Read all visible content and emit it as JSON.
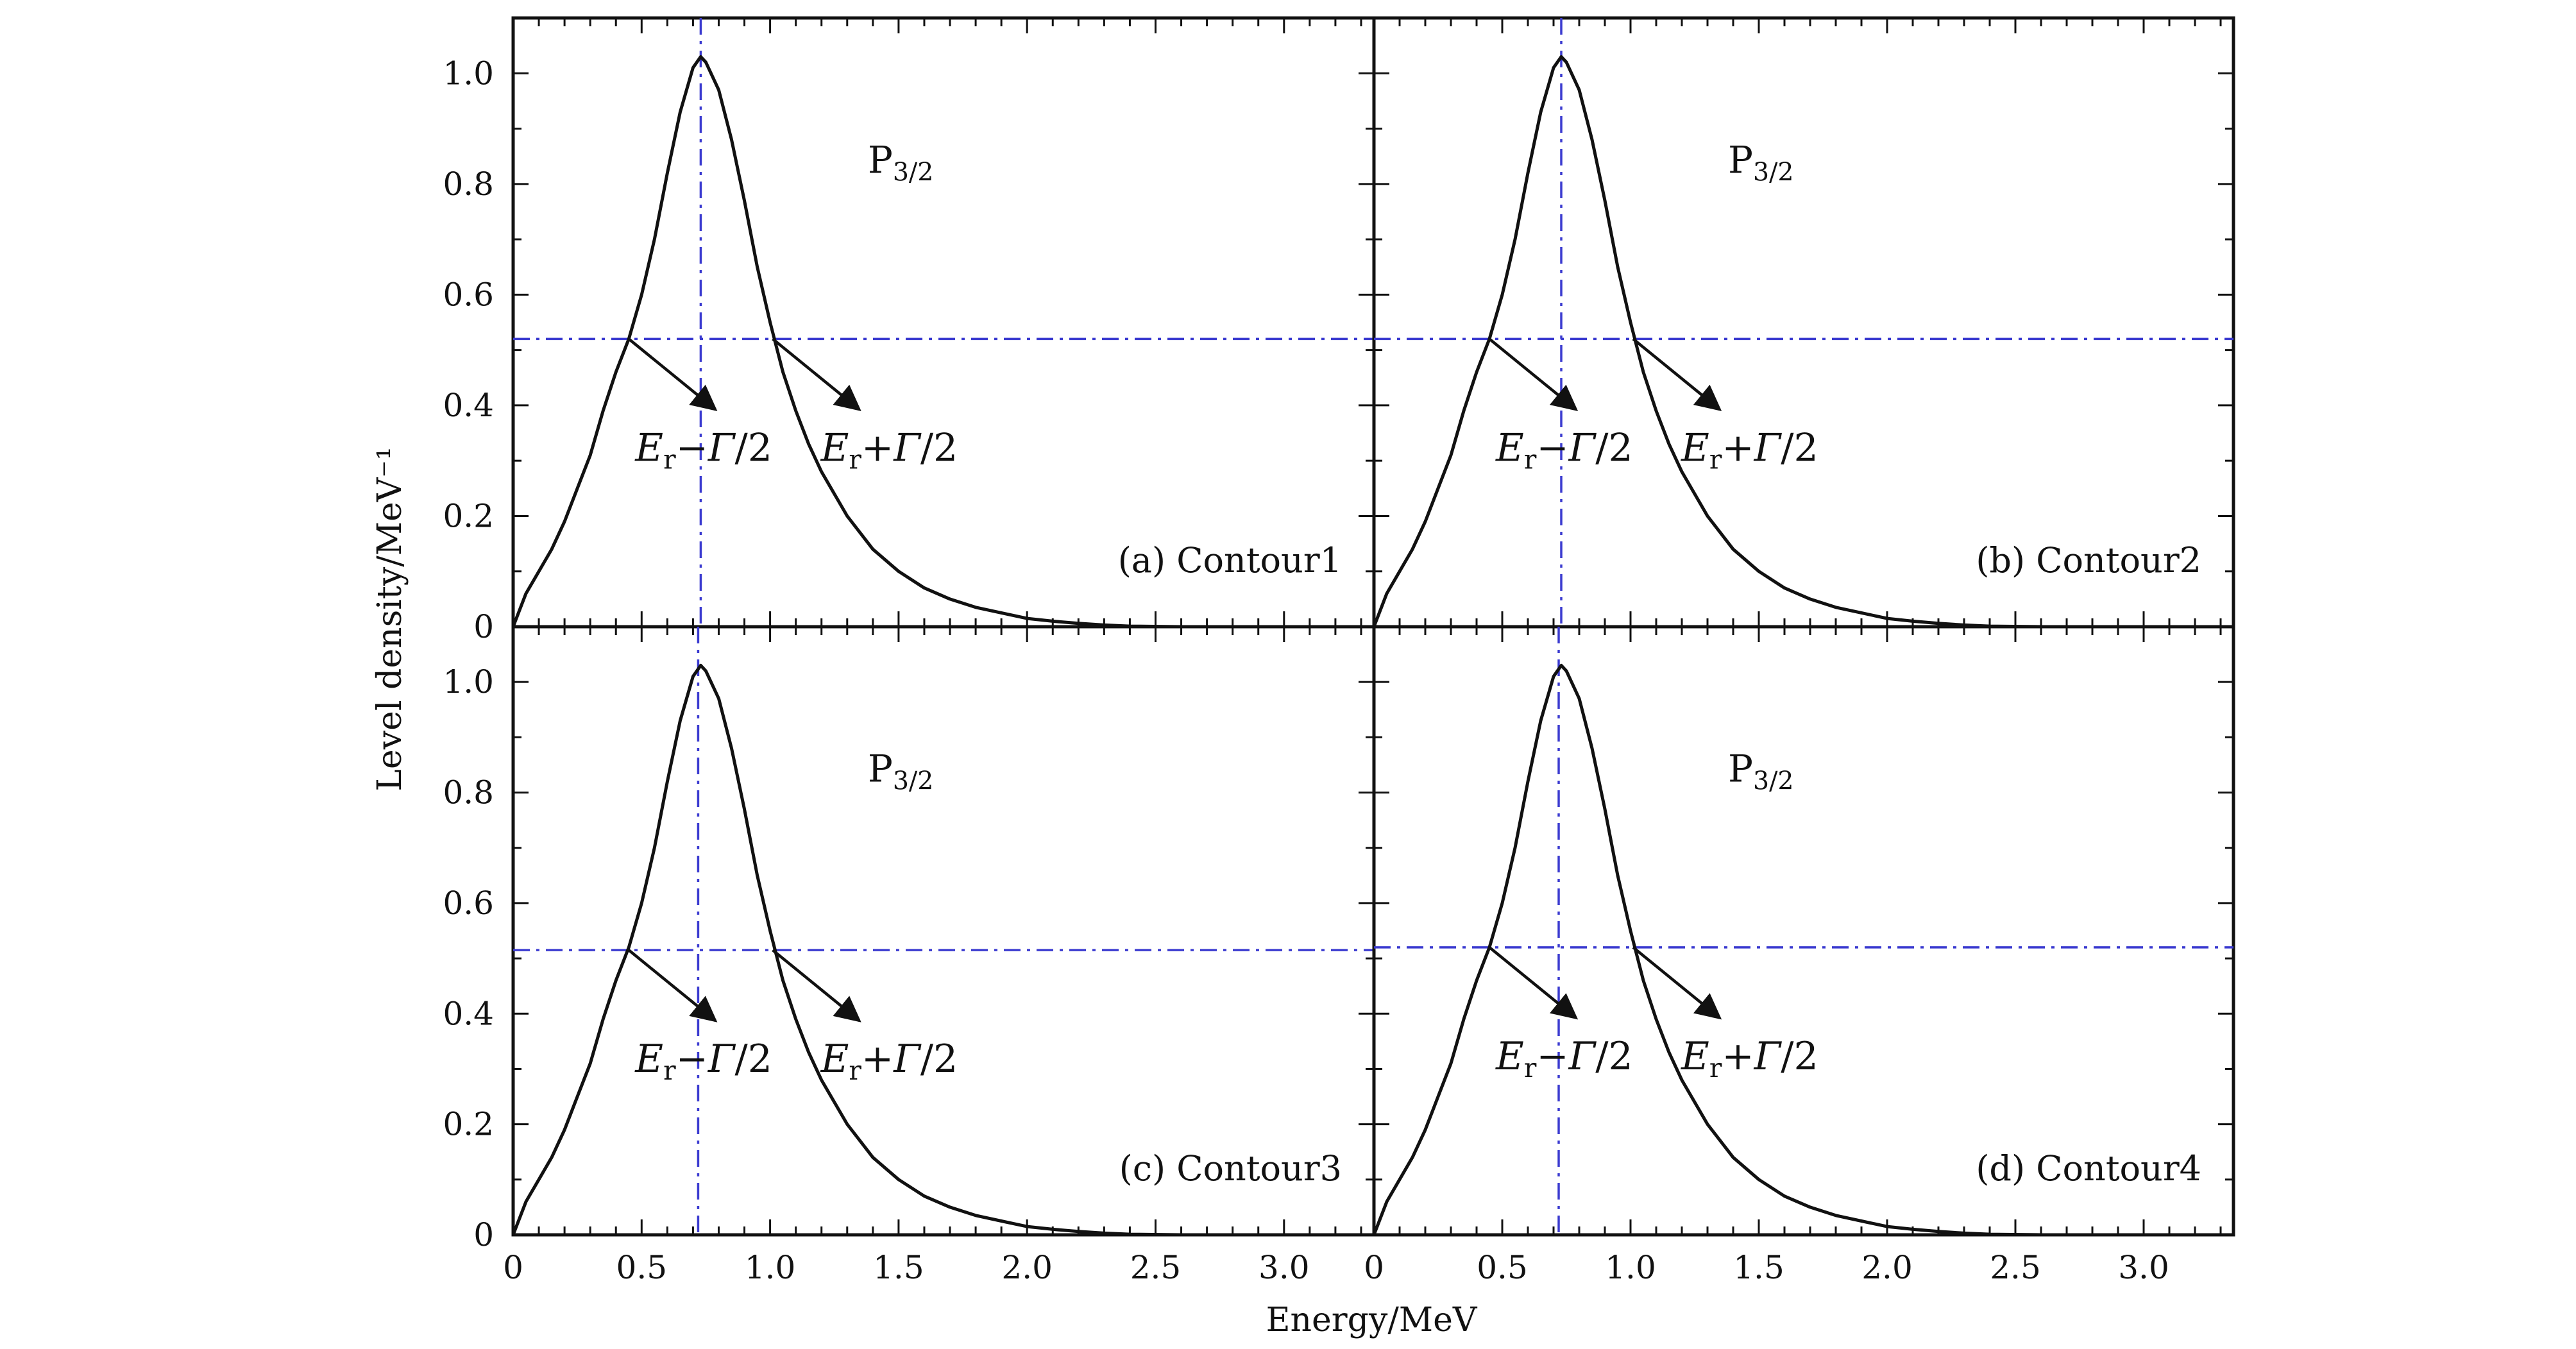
{
  "chart_data": {
    "type": "line",
    "xlabel": "Energy/MeV",
    "ylabel": "Level density/MeV⁻¹",
    "xlim": [
      0,
      3.35
    ],
    "ylim": [
      0,
      1.1
    ],
    "x_ticks": [
      0,
      0.5,
      1.0,
      1.5,
      2.0,
      2.5,
      3.0
    ],
    "x_tick_labels": [
      "0",
      "0.5",
      "1.0",
      "1.5",
      "2.0",
      "2.5",
      "3.0"
    ],
    "y_ticks": [
      0,
      0.2,
      0.4,
      0.6,
      0.8,
      1.0
    ],
    "y_tick_labels": [
      "0",
      "0.2",
      "0.4",
      "0.6",
      "0.8",
      "1.0"
    ],
    "line_color": "#111111",
    "reference_line_color": "#3b3bd0",
    "panels": [
      {
        "id": "a",
        "label": "(a) Contour1",
        "state_label": {
          "main": "P",
          "sub": "3/2"
        },
        "peak_energy": 0.73,
        "half_max": 0.52,
        "annotation_left": {
          "E": "E",
          "sub": "r",
          "rest": "−Γ/2"
        },
        "annotation_right": {
          "E": "E",
          "sub": "r",
          "rest": "+Γ/2"
        },
        "series": [
          {
            "x": [
              0,
              0.05,
              0.1,
              0.15,
              0.2,
              0.25,
              0.3,
              0.35,
              0.4,
              0.45,
              0.5,
              0.55,
              0.6,
              0.65,
              0.7,
              0.73,
              0.75,
              0.8,
              0.85,
              0.9,
              0.95,
              1.0,
              1.05,
              1.1,
              1.15,
              1.2,
              1.3,
              1.4,
              1.5,
              1.6,
              1.7,
              1.8,
              1.9,
              2.0,
              2.1,
              2.2,
              2.3,
              2.4,
              2.6,
              2.8,
              3.0,
              3.35
            ],
            "y": [
              0,
              0.06,
              0.1,
              0.14,
              0.19,
              0.25,
              0.31,
              0.39,
              0.46,
              0.52,
              0.6,
              0.7,
              0.82,
              0.93,
              1.01,
              1.03,
              1.02,
              0.97,
              0.88,
              0.77,
              0.65,
              0.55,
              0.46,
              0.39,
              0.33,
              0.28,
              0.2,
              0.14,
              0.1,
              0.07,
              0.05,
              0.035,
              0.025,
              0.015,
              0.01,
              0.006,
              0.003,
              0.001,
              0,
              0,
              0,
              0
            ]
          }
        ]
      },
      {
        "id": "b",
        "label": "(b) Contour2",
        "state_label": {
          "main": "P",
          "sub": "3/2"
        },
        "peak_energy": 0.73,
        "half_max": 0.52,
        "annotation_left": {
          "E": "E",
          "sub": "r",
          "rest": "−Γ/2"
        },
        "annotation_right": {
          "E": "E",
          "sub": "r",
          "rest": "+Γ/2"
        },
        "series": [
          {
            "x": [
              0,
              0.05,
              0.1,
              0.15,
              0.2,
              0.25,
              0.3,
              0.35,
              0.4,
              0.45,
              0.5,
              0.55,
              0.6,
              0.65,
              0.7,
              0.73,
              0.75,
              0.8,
              0.85,
              0.9,
              0.95,
              1.0,
              1.05,
              1.1,
              1.15,
              1.2,
              1.3,
              1.4,
              1.5,
              1.6,
              1.7,
              1.8,
              1.9,
              2.0,
              2.1,
              2.2,
              2.3,
              2.4,
              2.6,
              2.8,
              3.0,
              3.35
            ],
            "y": [
              0,
              0.06,
              0.1,
              0.14,
              0.19,
              0.25,
              0.31,
              0.39,
              0.46,
              0.52,
              0.6,
              0.7,
              0.82,
              0.93,
              1.01,
              1.03,
              1.02,
              0.97,
              0.88,
              0.77,
              0.65,
              0.55,
              0.46,
              0.39,
              0.33,
              0.28,
              0.2,
              0.14,
              0.1,
              0.07,
              0.05,
              0.035,
              0.025,
              0.015,
              0.01,
              0.006,
              0.003,
              0.001,
              0,
              0,
              0,
              0
            ]
          }
        ]
      },
      {
        "id": "c",
        "label": "(c) Contour3",
        "state_label": {
          "main": "P",
          "sub": "3/2"
        },
        "peak_energy": 0.72,
        "half_max": 0.515,
        "annotation_left": {
          "E": "E",
          "sub": "r",
          "rest": "−Γ/2"
        },
        "annotation_right": {
          "E": "E",
          "sub": "r",
          "rest": "+Γ/2"
        },
        "series": [
          {
            "x": [
              0,
              0.05,
              0.1,
              0.15,
              0.2,
              0.25,
              0.3,
              0.35,
              0.4,
              0.45,
              0.5,
              0.55,
              0.6,
              0.65,
              0.7,
              0.73,
              0.75,
              0.8,
              0.85,
              0.9,
              0.95,
              1.0,
              1.05,
              1.1,
              1.15,
              1.2,
              1.3,
              1.4,
              1.5,
              1.6,
              1.7,
              1.8,
              1.9,
              2.0,
              2.1,
              2.2,
              2.3,
              2.4,
              2.6,
              2.8,
              3.0,
              3.35
            ],
            "y": [
              0,
              0.06,
              0.1,
              0.14,
              0.19,
              0.25,
              0.31,
              0.39,
              0.46,
              0.52,
              0.6,
              0.7,
              0.82,
              0.93,
              1.01,
              1.03,
              1.02,
              0.97,
              0.88,
              0.77,
              0.65,
              0.55,
              0.46,
              0.39,
              0.33,
              0.28,
              0.2,
              0.14,
              0.1,
              0.07,
              0.05,
              0.035,
              0.025,
              0.015,
              0.01,
              0.006,
              0.003,
              0.001,
              0,
              0,
              0,
              0
            ]
          }
        ]
      },
      {
        "id": "d",
        "label": "(d) Contour4",
        "state_label": {
          "main": "P",
          "sub": "3/2"
        },
        "peak_energy": 0.72,
        "half_max": 0.52,
        "annotation_left": {
          "E": "E",
          "sub": "r",
          "rest": "−Γ/2"
        },
        "annotation_right": {
          "E": "E",
          "sub": "r",
          "rest": "+Γ/2"
        },
        "series": [
          {
            "x": [
              0,
              0.05,
              0.1,
              0.15,
              0.2,
              0.25,
              0.3,
              0.35,
              0.4,
              0.45,
              0.5,
              0.55,
              0.6,
              0.65,
              0.7,
              0.73,
              0.75,
              0.8,
              0.85,
              0.9,
              0.95,
              1.0,
              1.05,
              1.1,
              1.15,
              1.2,
              1.3,
              1.4,
              1.5,
              1.6,
              1.7,
              1.8,
              1.9,
              2.0,
              2.1,
              2.2,
              2.3,
              2.4,
              2.6,
              2.8,
              3.0,
              3.35
            ],
            "y": [
              0,
              0.06,
              0.1,
              0.14,
              0.19,
              0.25,
              0.31,
              0.39,
              0.46,
              0.52,
              0.6,
              0.7,
              0.82,
              0.93,
              1.01,
              1.03,
              1.02,
              0.97,
              0.88,
              0.77,
              0.65,
              0.55,
              0.46,
              0.39,
              0.33,
              0.28,
              0.2,
              0.14,
              0.1,
              0.07,
              0.05,
              0.035,
              0.025,
              0.015,
              0.01,
              0.006,
              0.003,
              0.001,
              0,
              0,
              0,
              0
            ]
          }
        ]
      }
    ]
  }
}
